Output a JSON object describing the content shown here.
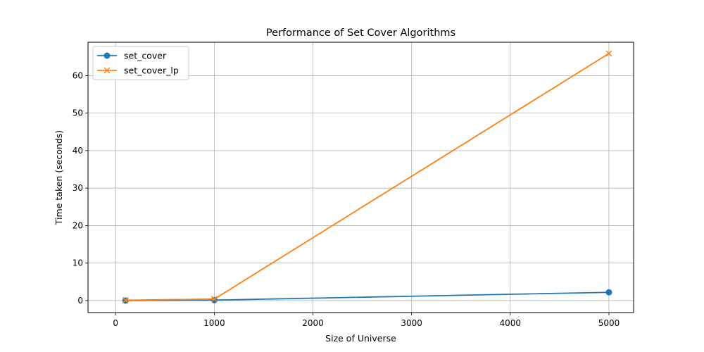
{
  "chart_data": {
    "type": "line",
    "title": "Performance of Set Cover Algorithms",
    "xlabel": "Size of Universe",
    "ylabel": "Time taken (seconds)",
    "xlim": [
      -280,
      5250
    ],
    "ylim": [
      -3.2,
      68.9
    ],
    "xticks": [
      0,
      1000,
      2000,
      3000,
      4000,
      5000
    ],
    "yticks": [
      0,
      10,
      20,
      30,
      40,
      50,
      60
    ],
    "grid": true,
    "legend_position": "top-left",
    "series": [
      {
        "name": "set_cover",
        "color": "#1f77b4",
        "marker": "circle",
        "x": [
          100,
          1000,
          5000
        ],
        "y": [
          0.01,
          0.12,
          2.2
        ]
      },
      {
        "name": "set_cover_lp",
        "color": "#ff7f0e",
        "marker": "x",
        "x": [
          100,
          1000,
          5000
        ],
        "y": [
          0.1,
          0.4,
          65.9
        ]
      }
    ]
  }
}
